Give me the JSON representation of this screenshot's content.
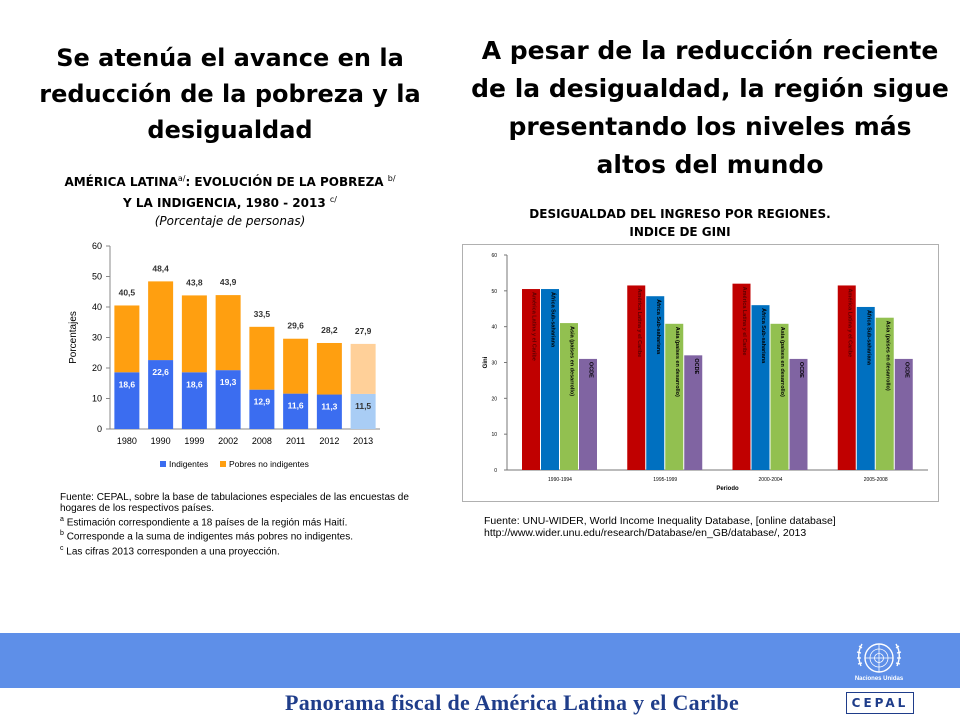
{
  "left": {
    "title": "Se atenúa el avance en la reducción de la pobreza y la desigualdad",
    "chart_head_line1": "AMÉRICA LATINA",
    "chart_head_sup_a": "a/",
    "chart_head_line1b": ": EVOLUCIÓN DE LA POBREZA",
    "chart_head_sup_b": "b/",
    "chart_head_line2": "Y LA INDIGENCIA, 1980 - 2013",
    "chart_head_sup_c": "c/",
    "chart_head_sub": "(Porcentaje de personas)",
    "notes": [
      "Fuente: CEPAL, sobre la base de tabulaciones especiales de las encuestas de hogares de los respectivos países.",
      "Estimación correspondiente a 18 países de la región más Haití.",
      "Corresponde a la suma de indigentes más pobres no indigentes.",
      "Las cifras 2013 corresponden a una proyección."
    ],
    "note_marks": [
      "a",
      "b",
      "c"
    ]
  },
  "right": {
    "title": "A pesar de la reducción reciente de la desigualdad, la región sigue presentando los niveles más altos del mundo",
    "chart_head_line1": "DESIGUALDAD DEL INGRESO POR REGIONES.",
    "chart_head_line2": "INDICE DE GINI",
    "notes": [
      "Fuente: UNU-WIDER, World Income Inequality Database, [online database]",
      "http://www.wider.unu.edu/research/Database/en_GB/database/, 2013"
    ]
  },
  "footer": {
    "title": "Panorama fiscal de América Latina y el Caribe",
    "un_label": "Naciones Unidas",
    "cepal": "CEPAL"
  },
  "colors": {
    "indigentes": "#3b6df0",
    "pobres": "#ff9f10",
    "indigentes_proj": "#a9cdf5",
    "pobres_proj": "#ffd099",
    "gini_lac": "#c00000",
    "gini_africa": "#0070c0",
    "gini_asia": "#92c050",
    "gini_ocde": "#8064a2",
    "footer": "#5e8fe8"
  },
  "chart_data": [
    {
      "type": "bar",
      "stacked": true,
      "categories": [
        "1980",
        "1990",
        "1999",
        "2002",
        "2008",
        "2011",
        "2012",
        "2013"
      ],
      "series": [
        {
          "name": "Indigentes",
          "values": [
            18.6,
            22.6,
            18.6,
            19.3,
            12.9,
            11.6,
            11.3,
            11.5
          ]
        },
        {
          "name": "Pobres no indigentes",
          "values": [
            21.9,
            25.8,
            25.2,
            24.6,
            20.6,
            18.0,
            16.9,
            16.4
          ]
        }
      ],
      "totals": [
        40.5,
        48.4,
        43.8,
        43.9,
        33.5,
        29.6,
        28.2,
        27.9
      ],
      "value_labels": {
        "indigentes": [
          "18,6",
          "22,6",
          "18,6",
          "19,3",
          "12,9",
          "11,6",
          "11,3",
          "11,5"
        ],
        "totals": [
          "40,5",
          "48,4",
          "43,8",
          "43,9",
          "33,5",
          "29,6",
          "28,2",
          "27,9"
        ]
      },
      "ylabel": "Porcentajes",
      "ylim": [
        0,
        60
      ],
      "yticks": [
        0,
        10,
        20,
        30,
        40,
        50,
        60
      ],
      "legend_position": "bottom",
      "grid": false
    },
    {
      "type": "bar",
      "categories": [
        "1990-1994",
        "1995-1999",
        "2000-2004",
        "2005-2008"
      ],
      "series": [
        {
          "name": "América Latina y el Caribe",
          "values": [
            50.5,
            51.5,
            52.0,
            51.5
          ]
        },
        {
          "name": "África Sub-sahariana",
          "values": [
            50.5,
            48.5,
            46.0,
            45.5
          ]
        },
        {
          "name": "Asia (países en desarrollo)",
          "values": [
            41.0,
            40.8,
            40.8,
            42.5
          ]
        },
        {
          "name": "OCDE",
          "values": [
            31.0,
            32.0,
            31.0,
            31.0
          ]
        }
      ],
      "bar_labels": [
        "América Latina y el Caribe",
        "África Sub-sahariana",
        "Asia (países en desarrollo)",
        "OCDE"
      ],
      "ylabel": "Gini",
      "xlabel": "Periodo",
      "ylim": [
        0,
        60
      ],
      "yticks": [
        "0",
        "10",
        "20",
        "30",
        "40",
        "50",
        "60"
      ],
      "grid": false
    }
  ]
}
